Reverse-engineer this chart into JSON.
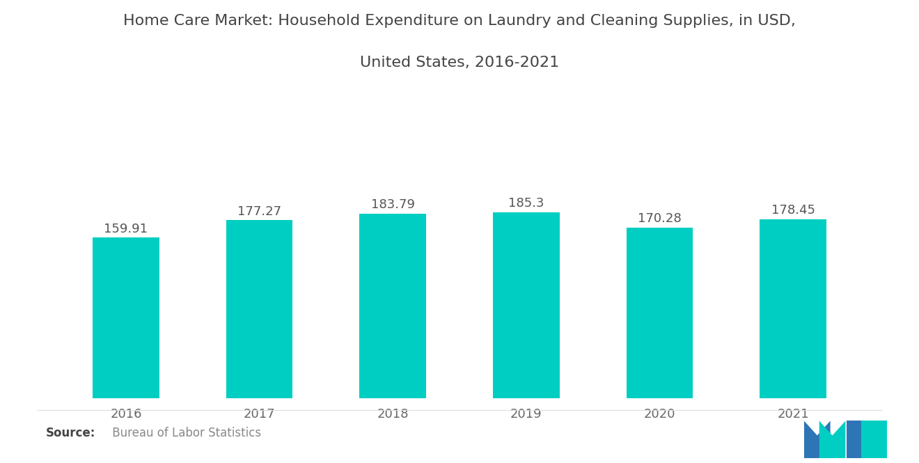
{
  "title_line1": "Home Care Market: Household Expenditure on Laundry and Cleaning Supplies, in USD,",
  "title_line2": "United States, 2016-2021",
  "categories": [
    "2016",
    "2017",
    "2018",
    "2019",
    "2020",
    "2021"
  ],
  "values": [
    159.91,
    177.27,
    183.79,
    185.3,
    170.28,
    178.45
  ],
  "bar_color": "#00CEC2",
  "background_color": "#ffffff",
  "ylim": [
    0,
    240
  ],
  "title_fontsize": 16,
  "label_fontsize": 13,
  "tick_fontsize": 13,
  "source_fontsize": 12,
  "bar_width": 0.5,
  "label_color": "#555555",
  "tick_color": "#666666",
  "source_bold_color": "#444444",
  "source_normal_color": "#888888"
}
